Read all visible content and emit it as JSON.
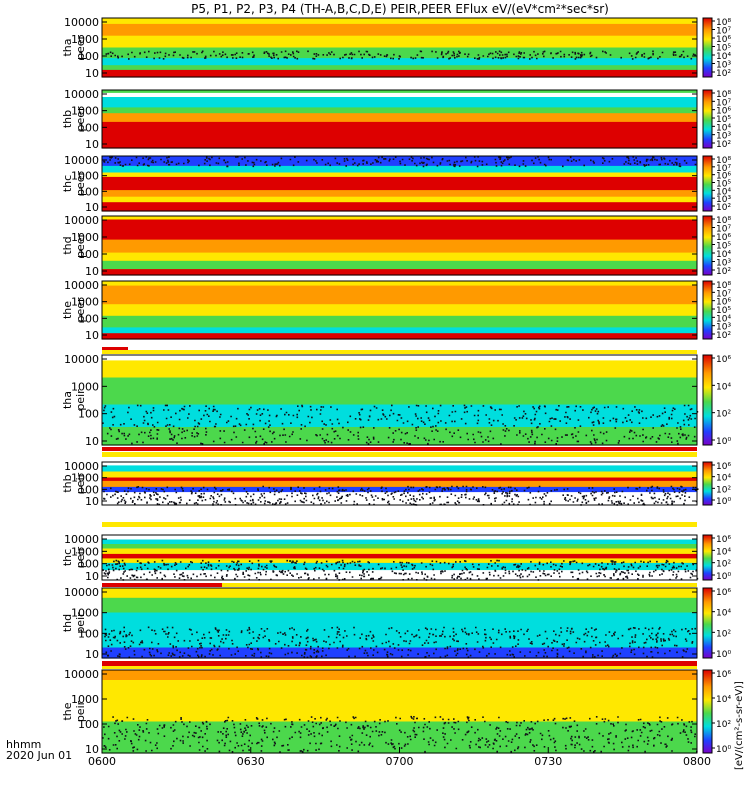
{
  "title": "P5, P1, P2, P3, P4 (TH-A,B,C,D,E) PEIR,PEER EFlux eV/(eV*cm²*sec*sr)",
  "colorbar_label": "[eV/(cm²-s-sr-eV)]",
  "time_label_main": "hhmm",
  "time_label_date": "2020 Jun 01",
  "colors": {
    "red": "#dd0000",
    "orange": "#ff9a00",
    "yellow": "#ffe800",
    "green": "#4cd84c",
    "cyan": "#00dede",
    "blue": "#2040ff",
    "purple": "#7a00c8"
  },
  "chart_data": {
    "type": "heatmap",
    "x_ticks": [
      "0600",
      "0630",
      "0700",
      "0730",
      "0800"
    ],
    "panels": [
      {
        "probe": "tha",
        "product": "peer",
        "ylabel": [
          "tha",
          "peer"
        ],
        "yticks": [
          "10000",
          "1000",
          "100",
          "10"
        ],
        "cb_ticks": [
          "10⁸",
          "10⁷",
          "10⁶",
          "10⁵",
          "10⁴",
          "10³",
          "10²"
        ]
      },
      {
        "probe": "thb",
        "product": "peer",
        "ylabel": [
          "thb",
          "peer"
        ],
        "yticks": [
          "10000",
          "1000",
          "100",
          "10"
        ],
        "cb_ticks": [
          "10⁸",
          "10⁷",
          "10⁶",
          "10⁵",
          "10⁴",
          "10³",
          "10²"
        ]
      },
      {
        "probe": "thc",
        "product": "peer",
        "ylabel": [
          "thc",
          "peer"
        ],
        "yticks": [
          "10000",
          "1000",
          "100",
          "10"
        ],
        "cb_ticks": [
          "10⁸",
          "10⁷",
          "10⁶",
          "10⁵",
          "10⁴",
          "10³",
          "10²"
        ]
      },
      {
        "probe": "thd",
        "product": "peer",
        "ylabel": [
          "thd",
          "peer"
        ],
        "yticks": [
          "10000",
          "1000",
          "100",
          "10"
        ],
        "cb_ticks": [
          "10⁸",
          "10⁷",
          "10⁶",
          "10⁵",
          "10⁴",
          "10³",
          "10²"
        ]
      },
      {
        "probe": "the",
        "product": "peer",
        "ylabel": [
          "the",
          "peer"
        ],
        "yticks": [
          "10000",
          "1000",
          "100",
          "10"
        ],
        "cb_ticks": [
          "10⁸",
          "10⁷",
          "10⁶",
          "10⁵",
          "10⁴",
          "10³",
          "10²"
        ]
      },
      {
        "probe": "tha",
        "product": "peir",
        "ylabel": [
          "tha",
          "peir"
        ],
        "yticks": [
          "10000",
          "1000",
          "100",
          "10"
        ],
        "cb_ticks": [
          "10⁶",
          "10⁴",
          "10²",
          "10⁰"
        ]
      },
      {
        "probe": "thb",
        "product": "peir",
        "ylabel": [
          "thb",
          "peir"
        ],
        "yticks": [
          "10000",
          "1000",
          "100",
          "10"
        ],
        "cb_ticks": [
          "10⁶",
          "10⁴",
          "10²",
          "10⁰"
        ]
      },
      {
        "probe": "thc",
        "product": "peir",
        "ylabel": [
          "thc",
          "peir"
        ],
        "yticks": [
          "10000",
          "1000",
          "100",
          "10"
        ],
        "cb_ticks": [
          "10⁶",
          "10⁴",
          "10²",
          "10⁰"
        ]
      },
      {
        "probe": "thd",
        "product": "peir",
        "ylabel": [
          "thd",
          "peir"
        ],
        "yticks": [
          "10000",
          "1000",
          "100",
          "10"
        ],
        "cb_ticks": [
          "10⁶",
          "10⁴",
          "10²",
          "10⁰"
        ]
      },
      {
        "probe": "the",
        "product": "peir",
        "ylabel": [
          "the",
          "peir"
        ],
        "yticks": [
          "10000",
          "1000",
          "100",
          "10"
        ],
        "cb_ticks": [
          "10⁶",
          "10⁴",
          "10²",
          "10⁰"
        ]
      }
    ]
  }
}
